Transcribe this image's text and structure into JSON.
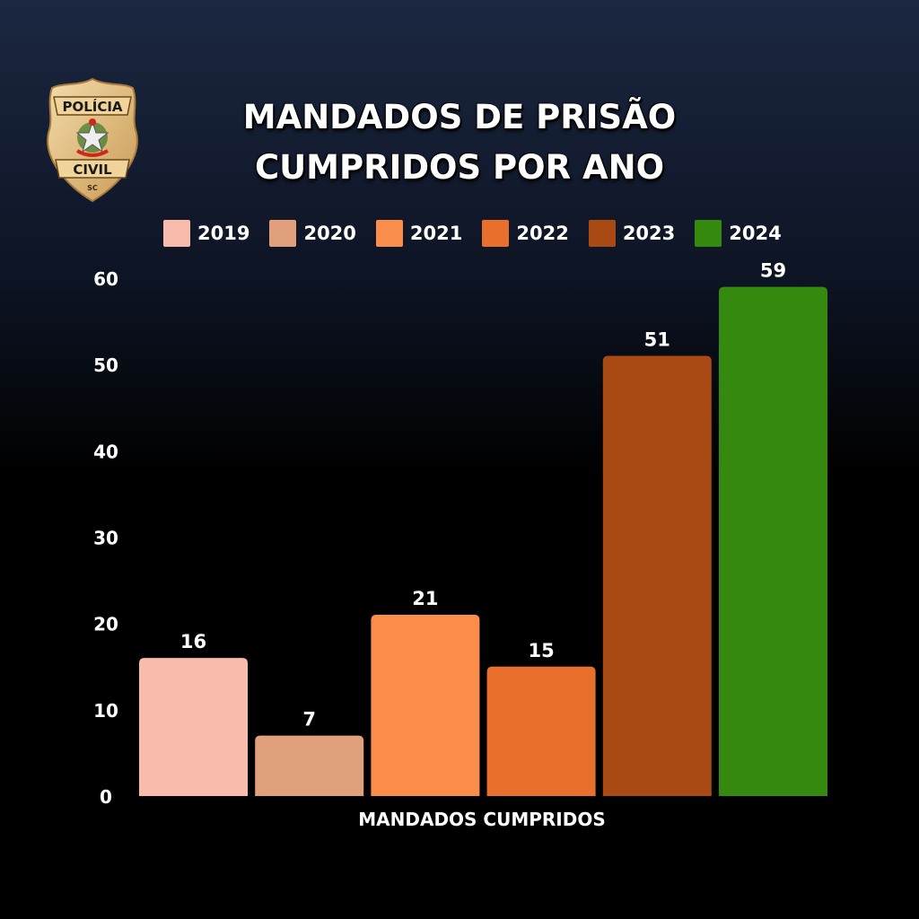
{
  "logo": {
    "top_text": "POLÍCIA",
    "bottom_text": "CIVIL",
    "state": "SC"
  },
  "chart_data": {
    "type": "bar",
    "title": "MANDADOS DE PRISÃO CUMPRIDOS POR ANO",
    "title_lines": [
      "MANDADOS DE PRISÃO",
      "CUMPRIDOS POR ANO"
    ],
    "xlabel": "MANDADOS CUMPRIDOS",
    "ylabel": "",
    "ylim": [
      0,
      60
    ],
    "yticks": [
      0,
      10,
      20,
      30,
      40,
      50,
      60
    ],
    "grid": false,
    "legend_placement": "top",
    "series": [
      {
        "name": "2019",
        "value": 16,
        "color": "#f7bcab"
      },
      {
        "name": "2020",
        "value": 7,
        "color": "#e0a07c"
      },
      {
        "name": "2021",
        "value": 21,
        "color": "#fb8d4b"
      },
      {
        "name": "2022",
        "value": 15,
        "color": "#e8702c"
      },
      {
        "name": "2023",
        "value": 51,
        "color": "#a94a14"
      },
      {
        "name": "2024",
        "value": 59,
        "color": "#36890f"
      }
    ]
  }
}
